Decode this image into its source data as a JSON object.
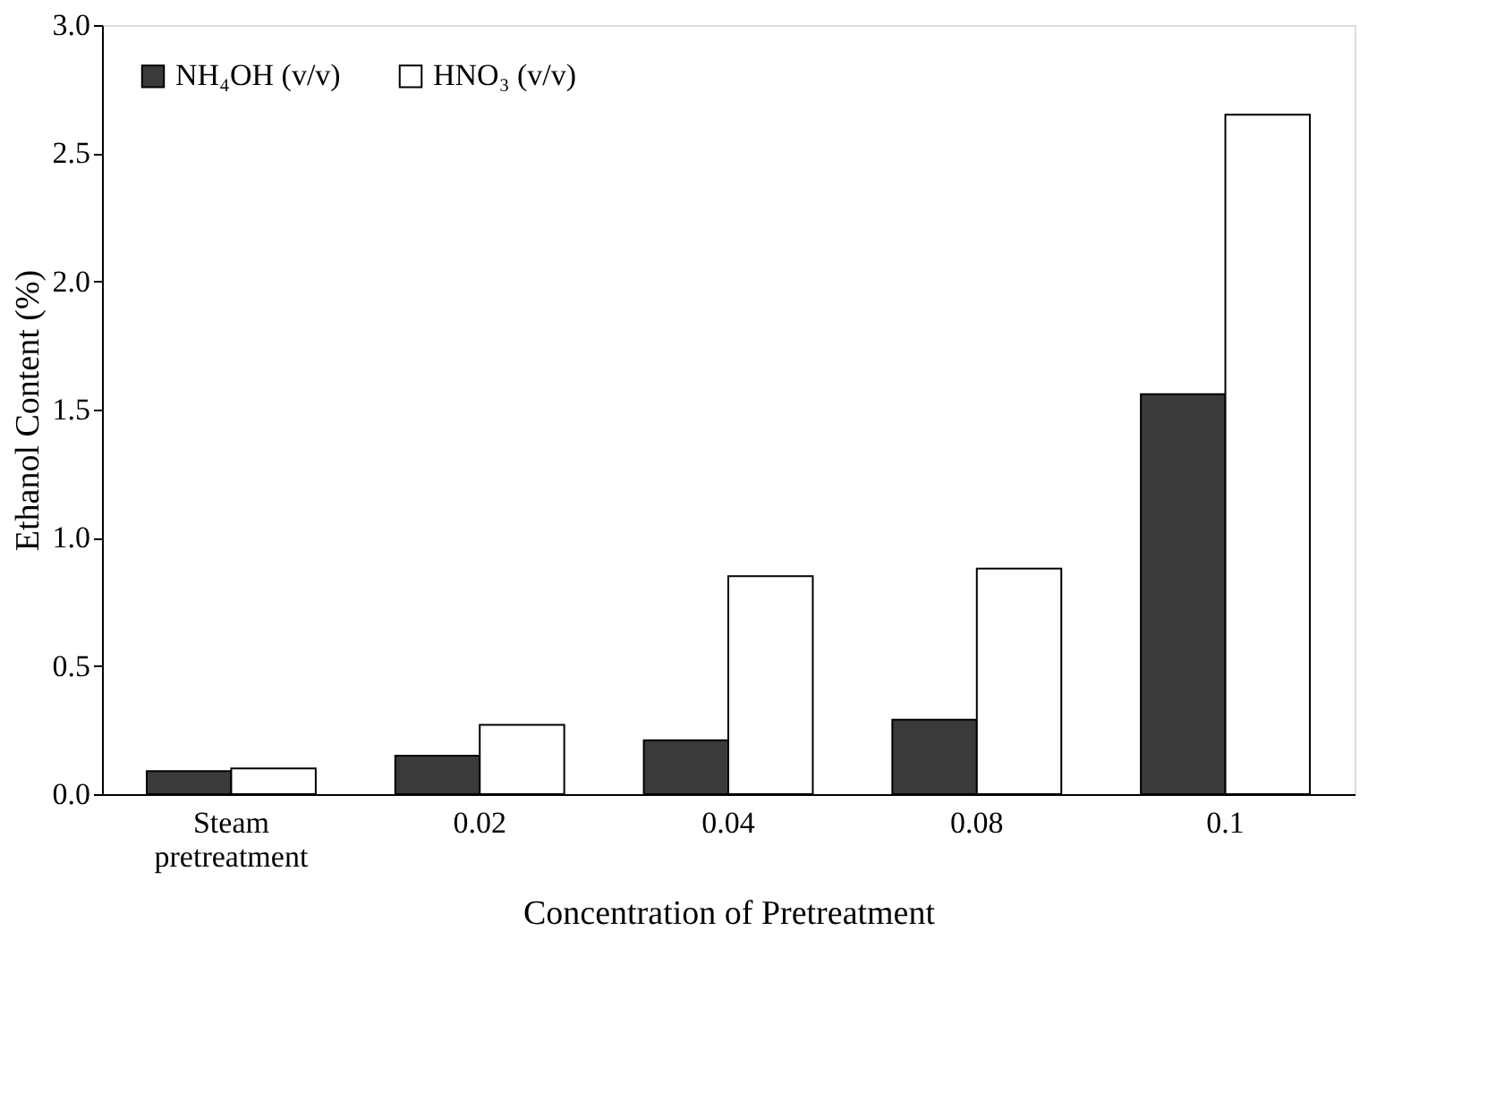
{
  "chart_data": {
    "type": "bar",
    "xlabel": "Concentration of  Pretreatment",
    "ylabel": "Ethanol Content (%)",
    "categories": [
      "Steam pretreatment",
      "0.02",
      "0.04",
      "0.08",
      "0.1"
    ],
    "series": [
      {
        "name": "NH₄OH (v/v)",
        "color": "#3a3a3a",
        "values": [
          0.09,
          0.15,
          0.21,
          0.29,
          1.56
        ]
      },
      {
        "name": "HNO₃ (v/v)",
        "color": "#ffffff",
        "values": [
          0.1,
          0.27,
          0.85,
          0.88,
          2.65
        ]
      }
    ],
    "ylim": [
      0,
      3.0
    ],
    "yticks": [
      {
        "value": 0,
        "label": "0.0"
      },
      {
        "value": 0.5,
        "label": "0.5"
      },
      {
        "value": 1,
        "label": "1.0"
      },
      {
        "value": 1.5,
        "label": "1.5"
      },
      {
        "value": 2,
        "label": "2.0"
      },
      {
        "value": 2.5,
        "label": "2.5"
      },
      {
        "value": 3,
        "label": "3.0"
      }
    ],
    "grid": false,
    "legend": "top left"
  }
}
